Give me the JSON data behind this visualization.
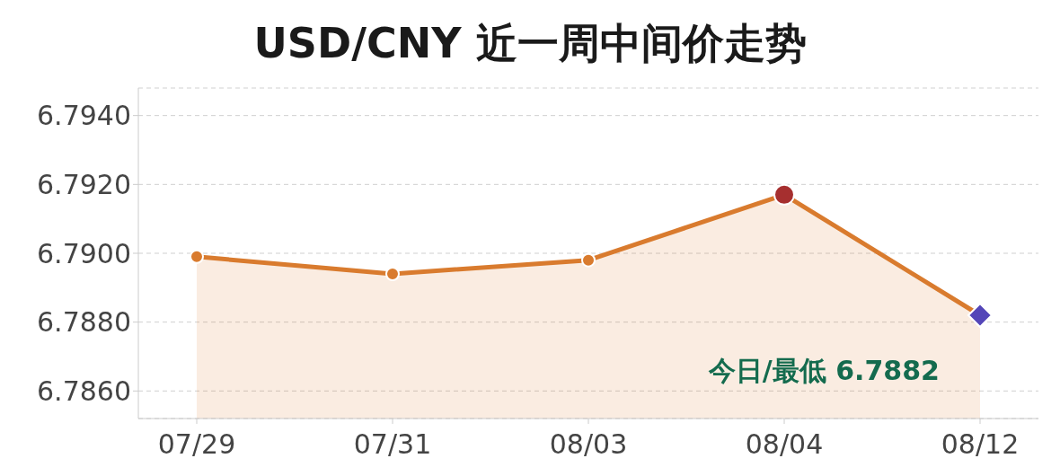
{
  "chart_data": {
    "type": "area",
    "title": "USD/CNY 近一周中间价走势",
    "categories": [
      "07/29",
      "07/31",
      "08/03",
      "08/04",
      "08/12"
    ],
    "series": [
      {
        "color": "#d97b2e",
        "values": [
          6.7899,
          6.7894,
          6.7898,
          6.7917,
          6.7882
        ],
        "marker": "circle"
      },
      {
        "type": "scatter",
        "color": "#a62f2f",
        "x": [
          "08/04"
        ],
        "values": [
          6.7917
        ],
        "marker": "circle"
      },
      {
        "type": "scatter",
        "color": "#5446b8",
        "x": [
          "08/12"
        ],
        "values": [
          6.7882
        ],
        "marker": "diamond"
      }
    ],
    "ylim": [
      6.7852,
      6.7948
    ],
    "yticks": [
      {
        "value": 6.786,
        "label": "6.7860"
      },
      {
        "value": 6.788,
        "label": "6.7880"
      },
      {
        "value": 6.79,
        "label": "6.7900"
      },
      {
        "value": 6.792,
        "label": "6.7920"
      },
      {
        "value": 6.794,
        "label": "6.7940"
      }
    ],
    "grid": "y",
    "legend": false,
    "annotations": [
      {
        "text": "今日/最低 6.7882",
        "x": "08/12",
        "y": 6.7882
      }
    ]
  }
}
